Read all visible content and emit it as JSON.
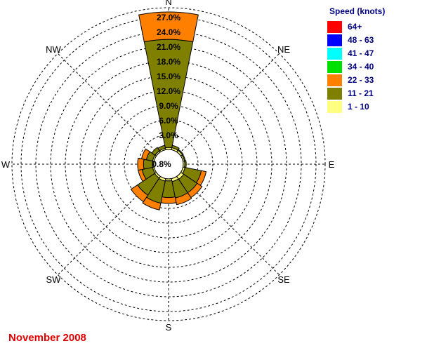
{
  "chart_data": {
    "type": "windrose",
    "title": "",
    "calm_label": "0.8%",
    "ring_labels": [
      "3.0%",
      "6.0%",
      "9.0%",
      "12.0%",
      "15.0%",
      "18.0%",
      "21.0%",
      "24.0%",
      "27.0%"
    ],
    "ring_step_percent": 3.0,
    "direction_labels": [
      "N",
      "NE",
      "E",
      "SE",
      "S",
      "SW",
      "W",
      "NW"
    ],
    "legend_title": "Speed (knots)",
    "speed_bins": [
      {
        "label": "64+",
        "color": "#ff0000"
      },
      {
        "label": "48 - 63",
        "color": "#0000ff"
      },
      {
        "label": "41 - 47",
        "color": "#00ffff"
      },
      {
        "label": "34 - 40",
        "color": "#00e000"
      },
      {
        "label": "22 - 33",
        "color": "#ff8000"
      },
      {
        "label": "11 - 21",
        "color": "#808000"
      },
      {
        "label": "1 - 10",
        "color": "#ffff80"
      }
    ],
    "sectors": [
      {
        "dir": "N",
        "values": {
          "1 - 10": 0.4,
          "11 - 21": 22.0,
          "22 - 33": 5.6
        }
      },
      {
        "dir": "NNE",
        "values": {
          "1 - 10": 0.4,
          "11 - 21": 0.5,
          "22 - 33": 0
        }
      },
      {
        "dir": "NE",
        "values": {
          "1 - 10": 0.4,
          "11 - 21": 0.2,
          "22 - 33": 0
        }
      },
      {
        "dir": "ENE",
        "values": {
          "1 - 10": 0.3,
          "11 - 21": 0.2,
          "22 - 33": 0
        }
      },
      {
        "dir": "E",
        "values": {
          "1 - 10": 0.3,
          "11 - 21": 0.3,
          "22 - 33": 0
        }
      },
      {
        "dir": "ESE",
        "values": {
          "1 - 10": 0.4,
          "11 - 21": 3.4,
          "22 - 33": 1.0
        }
      },
      {
        "dir": "SE",
        "values": {
          "1 - 10": 0.7,
          "11 - 21": 3.3,
          "22 - 33": 1.2
        }
      },
      {
        "dir": "SSE",
        "values": {
          "1 - 10": 0.6,
          "11 - 21": 3.4,
          "22 - 33": 1.4
        }
      },
      {
        "dir": "S",
        "values": {
          "1 - 10": 0.4,
          "11 - 21": 3.4,
          "22 - 33": 1.2
        }
      },
      {
        "dir": "SSW",
        "values": {
          "1 - 10": 0.5,
          "11 - 21": 4.6,
          "22 - 33": 1.4
        }
      },
      {
        "dir": "SW",
        "values": {
          "1 - 10": 0.4,
          "11 - 21": 4.2,
          "22 - 33": 1.6
        }
      },
      {
        "dir": "WSW",
        "values": {
          "1 - 10": 0.3,
          "11 - 21": 2.2,
          "22 - 33": 0.8
        }
      },
      {
        "dir": "W",
        "values": {
          "1 - 10": 0.3,
          "11 - 21": 1.8,
          "22 - 33": 1.2
        }
      },
      {
        "dir": "WNW",
        "values": {
          "1 - 10": 0.3,
          "11 - 21": 1.3,
          "22 - 33": 1.0
        }
      },
      {
        "dir": "NW",
        "values": {
          "1 - 10": 0.3,
          "11 - 21": 0.8,
          "22 - 33": 0
        }
      },
      {
        "dir": "NNW",
        "values": {
          "1 - 10": 0.3,
          "11 - 21": 0.6,
          "22 - 33": 0
        }
      }
    ]
  },
  "footer_label": "November 2008"
}
